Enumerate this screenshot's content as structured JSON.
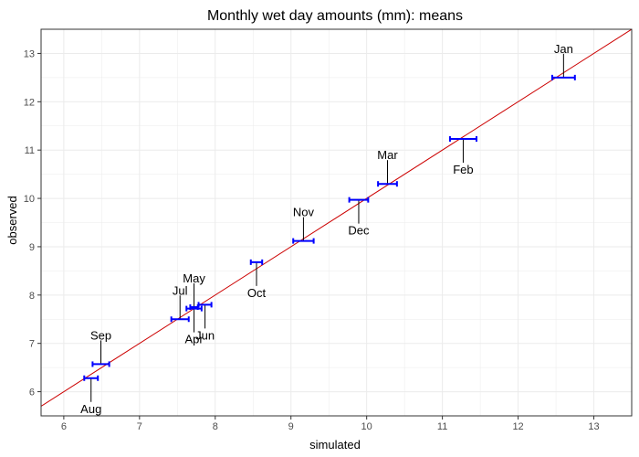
{
  "chart_data": {
    "type": "scatter",
    "title": "Monthly wet day amounts (mm): means",
    "xlabel": "simulated",
    "ylabel": "observed",
    "xlim": [
      5.7,
      13.5
    ],
    "ylim": [
      5.5,
      13.5
    ],
    "xticks": [
      6,
      7,
      8,
      9,
      10,
      11,
      12,
      13
    ],
    "yticks": [
      6,
      7,
      8,
      9,
      10,
      11,
      12,
      13
    ],
    "grid": true,
    "reference_line": {
      "slope": 1,
      "intercept": 0,
      "color": "#cc0000"
    },
    "errorbar_color": "#0000ff",
    "points": [
      {
        "label": "Jan",
        "observed": 12.5,
        "sim_low": 12.45,
        "sim_high": 12.75,
        "label_pos": "above"
      },
      {
        "label": "Feb",
        "observed": 11.23,
        "sim_low": 11.1,
        "sim_high": 11.45,
        "label_pos": "below"
      },
      {
        "label": "Mar",
        "observed": 10.3,
        "sim_low": 10.15,
        "sim_high": 10.4,
        "label_pos": "above"
      },
      {
        "label": "Apr",
        "observed": 7.72,
        "sim_low": 7.62,
        "sim_high": 7.82,
        "label_pos": "below"
      },
      {
        "label": "May",
        "observed": 7.75,
        "sim_low": 7.67,
        "sim_high": 7.77,
        "label_pos": "above"
      },
      {
        "label": "Jun",
        "observed": 7.8,
        "sim_low": 7.78,
        "sim_high": 7.95,
        "label_pos": "below"
      },
      {
        "label": "Jul",
        "observed": 7.5,
        "sim_low": 7.42,
        "sim_high": 7.65,
        "label_pos": "above"
      },
      {
        "label": "Aug",
        "observed": 6.28,
        "sim_low": 6.27,
        "sim_high": 6.45,
        "label_pos": "below"
      },
      {
        "label": "Sep",
        "observed": 6.57,
        "sim_low": 6.38,
        "sim_high": 6.6,
        "label_pos": "above"
      },
      {
        "label": "Oct",
        "observed": 8.68,
        "sim_low": 8.47,
        "sim_high": 8.62,
        "label_pos": "below"
      },
      {
        "label": "Nov",
        "observed": 9.12,
        "sim_low": 9.03,
        "sim_high": 9.3,
        "label_pos": "above"
      },
      {
        "label": "Dec",
        "observed": 9.97,
        "sim_low": 9.77,
        "sim_high": 10.02,
        "label_pos": "below"
      }
    ]
  }
}
